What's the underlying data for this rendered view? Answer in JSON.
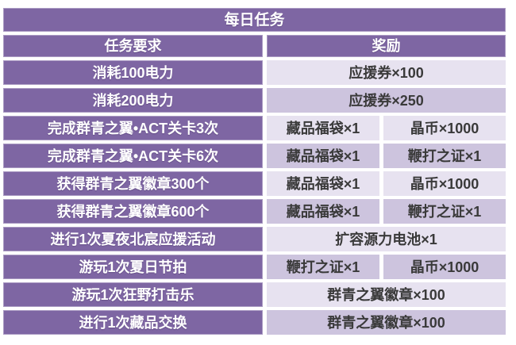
{
  "title": "每日任务",
  "columns": {
    "task": "任务要求",
    "reward": "奖励"
  },
  "rows": [
    {
      "task": "消耗100电力",
      "rewards": [
        "应援券×100"
      ]
    },
    {
      "task": "消耗200电力",
      "rewards": [
        "应援券×250"
      ]
    },
    {
      "task": "完成群青之翼•ACT关卡3次",
      "rewards": [
        "藏品福袋×1",
        "晶币×1000"
      ]
    },
    {
      "task": "完成群青之翼•ACT关卡6次",
      "rewards": [
        "藏品福袋×1",
        "鞭打之证×1"
      ]
    },
    {
      "task": "获得群青之翼徽章300个",
      "rewards": [
        "藏品福袋×1",
        "晶币×1000"
      ]
    },
    {
      "task": "获得群青之翼徽章600个",
      "rewards": [
        "藏品福袋×1",
        "鞭打之证×1"
      ]
    },
    {
      "task": "进行1次夏夜北宸应援活动",
      "rewards": [
        "扩容源力电池×1"
      ]
    },
    {
      "task": "游玩1次夏日节拍",
      "rewards": [
        "鞭打之证×1",
        "晶币×1000"
      ]
    },
    {
      "task": "游玩1次狂野打击乐",
      "rewards": [
        "群青之翼徽章×100"
      ]
    },
    {
      "task": "进行1次藏品交换",
      "rewards": [
        "群青之翼徽章×100"
      ]
    }
  ],
  "colors": {
    "header_purple": "#7e66a3",
    "reward_row_light": "#e7e2f0",
    "reward_row_dark": "#cdc4de",
    "header_text": "#ffffff",
    "reward_text": "#3a3a3a",
    "gap": "#ffffff"
  }
}
